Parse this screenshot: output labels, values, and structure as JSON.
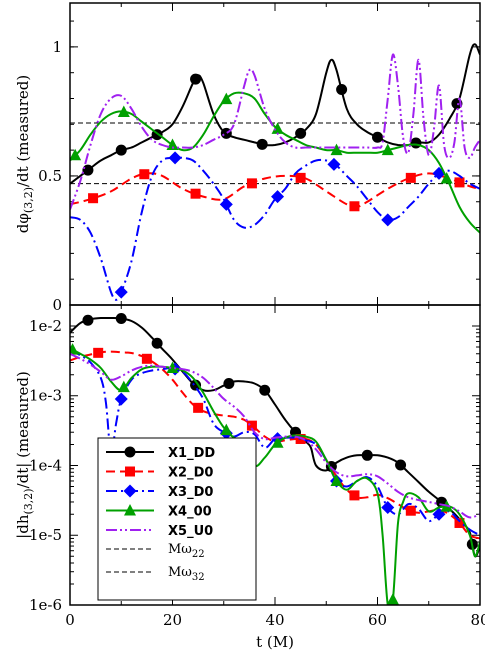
{
  "chart_data": [
    {
      "type": "line",
      "ylabel": "dφ(3,2)/dt (measured)",
      "xlim": [
        0,
        80
      ],
      "ylim": [
        0,
        1.17
      ],
      "yticks": [
        0,
        0.5,
        1
      ],
      "ytick_labels": [
        "0",
        "0.5",
        "1"
      ],
      "reference_lines": [
        {
          "name": "Mω22",
          "y": 0.47
        },
        {
          "name": "Mω32",
          "y": 0.705
        }
      ],
      "series": [
        {
          "name": "X1_DD",
          "color": "#000000",
          "dash": "solid",
          "marker": "circle",
          "x": [
            0,
            2,
            4,
            6,
            8,
            10,
            12,
            14,
            16,
            18,
            20,
            22,
            24,
            25,
            26,
            28,
            30,
            32,
            34,
            36,
            38,
            40,
            42,
            44,
            46,
            48,
            50,
            51,
            52,
            54,
            56,
            58,
            60,
            62,
            64,
            66,
            68,
            70,
            72,
            74,
            76,
            78,
            79,
            80
          ],
          "y": [
            0.47,
            0.5,
            0.53,
            0.56,
            0.58,
            0.6,
            0.61,
            0.63,
            0.65,
            0.67,
            0.7,
            0.77,
            0.86,
            0.89,
            0.86,
            0.74,
            0.67,
            0.65,
            0.64,
            0.63,
            0.62,
            0.62,
            0.63,
            0.65,
            0.68,
            0.74,
            0.9,
            0.95,
            0.91,
            0.76,
            0.7,
            0.67,
            0.65,
            0.63,
            0.62,
            0.62,
            0.63,
            0.63,
            0.66,
            0.72,
            0.8,
            0.97,
            1.01,
            0.97
          ],
          "marker_x": [
            3.5,
            10,
            17,
            24.5,
            30.5,
            37.5,
            45,
            53,
            60,
            67.5,
            75.5
          ]
        },
        {
          "name": "X2_D0",
          "color": "#ff0000",
          "dash": "dashed",
          "marker": "square",
          "x": [
            0,
            4,
            8,
            12,
            15,
            18,
            22,
            26,
            30,
            34,
            38,
            42,
            46,
            50,
            54,
            56,
            58,
            62,
            66,
            70,
            74,
            78,
            80
          ],
          "y": [
            0.39,
            0.41,
            0.44,
            0.49,
            0.51,
            0.5,
            0.45,
            0.42,
            0.41,
            0.46,
            0.49,
            0.5,
            0.49,
            0.44,
            0.39,
            0.38,
            0.4,
            0.45,
            0.49,
            0.51,
            0.49,
            0.46,
            0.45
          ],
          "marker_x": [
            4.5,
            14.5,
            24.5,
            35.5,
            45,
            55.5,
            66.5,
            76
          ]
        },
        {
          "name": "X3_D0",
          "color": "#0000ff",
          "dash": "dashdot",
          "marker": "diamond",
          "x": [
            0,
            2,
            4,
            6,
            8,
            9,
            10,
            12,
            14,
            16,
            18,
            20,
            22,
            24,
            26,
            28,
            30,
            32,
            34,
            36,
            38,
            40,
            42,
            44,
            46,
            48,
            50,
            52,
            54,
            56,
            58,
            60,
            62,
            64,
            66,
            68,
            70,
            72,
            74,
            76,
            78,
            80
          ],
          "y": [
            0.34,
            0.33,
            0.28,
            0.18,
            0.05,
            0.02,
            0.05,
            0.17,
            0.36,
            0.5,
            0.56,
            0.57,
            0.57,
            0.56,
            0.52,
            0.47,
            0.41,
            0.33,
            0.3,
            0.31,
            0.35,
            0.41,
            0.45,
            0.51,
            0.54,
            0.56,
            0.56,
            0.54,
            0.5,
            0.46,
            0.41,
            0.36,
            0.33,
            0.34,
            0.38,
            0.42,
            0.47,
            0.51,
            0.52,
            0.5,
            0.47,
            0.45
          ],
          "marker_x": [
            10,
            20.5,
            30.5,
            40.5,
            51.5,
            62,
            72
          ]
        },
        {
          "name": "X4_00",
          "color": "#00a000",
          "dash": "solid",
          "marker": "triangle",
          "x": [
            0,
            2,
            4,
            6,
            8,
            10,
            12,
            14,
            16,
            18,
            20,
            22,
            24,
            26,
            28,
            30,
            32,
            34,
            36,
            38,
            40,
            42,
            44,
            46,
            48,
            50,
            52,
            54,
            56,
            58,
            60,
            62,
            64,
            66,
            68,
            70,
            72,
            74,
            76,
            78,
            80
          ],
          "y": [
            0.56,
            0.6,
            0.66,
            0.71,
            0.74,
            0.75,
            0.74,
            0.71,
            0.68,
            0.65,
            0.62,
            0.6,
            0.61,
            0.66,
            0.73,
            0.79,
            0.82,
            0.82,
            0.8,
            0.74,
            0.69,
            0.66,
            0.64,
            0.62,
            0.61,
            0.6,
            0.6,
            0.59,
            0.59,
            0.59,
            0.59,
            0.6,
            0.61,
            0.62,
            0.62,
            0.6,
            0.55,
            0.47,
            0.38,
            0.32,
            0.28
          ],
          "marker_x": [
            1,
            10.5,
            20,
            30.5,
            40.5,
            52,
            62,
            73.5
          ]
        },
        {
          "name": "X5_U0",
          "color": "#a020f0",
          "dash": "dashdotdot",
          "marker": "none",
          "x": [
            0,
            2,
            4,
            6,
            8,
            10,
            12,
            14,
            16,
            18,
            20,
            22,
            24,
            26,
            28,
            30,
            32,
            34,
            35,
            36,
            38,
            40,
            42,
            44,
            46,
            48,
            50,
            52,
            54,
            56,
            58,
            60,
            61,
            62,
            63,
            64,
            65,
            66,
            67,
            68,
            69,
            70,
            71,
            72,
            73,
            74,
            75,
            76,
            77,
            78,
            79,
            80
          ],
          "y": [
            0.37,
            0.48,
            0.62,
            0.74,
            0.8,
            0.81,
            0.76,
            0.69,
            0.64,
            0.62,
            0.61,
            0.61,
            0.61,
            0.62,
            0.64,
            0.66,
            0.7,
            0.85,
            0.91,
            0.89,
            0.76,
            0.68,
            0.63,
            0.61,
            0.61,
            0.61,
            0.61,
            0.61,
            0.61,
            0.61,
            0.61,
            0.61,
            0.63,
            0.8,
            0.97,
            0.85,
            0.65,
            0.59,
            0.74,
            0.95,
            0.72,
            0.58,
            0.68,
            0.85,
            0.62,
            0.57,
            0.63,
            0.8,
            0.61,
            0.57,
            0.61,
            0.64
          ]
        }
      ]
    },
    {
      "type": "line",
      "xlabel": "t (M)",
      "ylabel": "|dh(3,2)/dt| (measured)",
      "yscale": "log",
      "xlim": [
        0,
        80
      ],
      "ylim": [
        1e-06,
        0.02
      ],
      "xticks": [
        0,
        20,
        40,
        60,
        80
      ],
      "yticks": [
        1e-06,
        1e-05,
        0.0001,
        0.001,
        0.01
      ],
      "ytick_labels": [
        "1e-6",
        "1e-5",
        "1e-4",
        "1e-3",
        "1e-2"
      ],
      "legend_position": "bottom-left",
      "legend": {
        "entries": [
          "X1_DD",
          "X2_D0",
          "X3_D0",
          "X4_00",
          "X5_U0"
        ],
        "freq_labels": [
          {
            "base": "Mω",
            "sub": "22"
          },
          {
            "base": "Mω",
            "sub": "32"
          }
        ]
      },
      "series": [
        {
          "name": "X1_DD",
          "x": [
            0,
            2,
            4,
            6,
            8,
            10,
            12,
            14,
            16,
            18,
            20,
            22,
            24,
            26,
            28,
            30,
            32,
            34,
            36,
            38,
            40,
            42,
            44,
            46,
            47,
            48,
            50,
            52,
            54,
            56,
            58,
            60,
            62,
            64,
            66,
            68,
            70,
            72,
            74,
            76,
            78,
            79,
            80
          ],
          "y": [
            0.008,
            0.011,
            0.0125,
            0.013,
            0.013,
            0.0128,
            0.0118,
            0.0095,
            0.0068,
            0.0047,
            0.0033,
            0.0022,
            0.0015,
            0.0012,
            0.0012,
            0.0014,
            0.0016,
            0.0016,
            0.0015,
            0.0012,
            0.00075,
            0.00045,
            0.0003,
            0.00022,
            0.00018,
            0.0001,
            8.5e-05,
            0.00011,
            0.00013,
            0.00014,
            0.00014,
            0.00014,
            0.00013,
            0.00011,
            8e-05,
            5.8e-05,
            4.2e-05,
            3.2e-05,
            2.4e-05,
            1.7e-05,
            1.1e-05,
            5e-06,
            7e-06
          ],
          "marker_x": [
            3.5,
            10,
            17,
            24.5,
            31,
            38,
            44,
            51,
            58,
            64.5,
            72.5,
            78.5
          ]
        },
        {
          "name": "X2_D0",
          "x": [
            0,
            2,
            4,
            6,
            8,
            10,
            12,
            14,
            16,
            18,
            20,
            22,
            24,
            26,
            28,
            30,
            32,
            34,
            36,
            38,
            40,
            42,
            44,
            46,
            48,
            50,
            52,
            54,
            56,
            58,
            60,
            62,
            64,
            66,
            68,
            70,
            72,
            74,
            76,
            78,
            80
          ],
          "y": [
            0.0032,
            0.0036,
            0.0039,
            0.0042,
            0.0043,
            0.0042,
            0.0041,
            0.0037,
            0.0031,
            0.0024,
            0.0017,
            0.0011,
            0.00075,
            0.0006,
            0.00055,
            0.00052,
            0.0005,
            0.00045,
            0.00035,
            0.00026,
            0.00022,
            0.00023,
            0.00024,
            0.00024,
            0.0002,
            0.00012,
            7e-05,
            4.5e-05,
            3.5e-05,
            3.5e-05,
            3.8e-05,
            3.4e-05,
            2.8e-05,
            2.3e-05,
            2.1e-05,
            2.2e-05,
            2.3e-05,
            2e-05,
            1.5e-05,
            1e-05,
            9e-06
          ],
          "marker_x": [
            5.5,
            15,
            25,
            35.5,
            45,
            55.5,
            66.5,
            76
          ]
        },
        {
          "name": "X3_D0",
          "x": [
            0,
            2,
            4,
            6,
            7,
            8,
            9,
            10,
            12,
            14,
            16,
            18,
            20,
            22,
            24,
            26,
            28,
            30,
            32,
            34,
            36,
            38,
            40,
            42,
            44,
            46,
            48,
            50,
            52,
            54,
            56,
            58,
            60,
            62,
            64,
            66,
            68,
            70,
            72,
            74,
            76,
            78,
            80
          ],
          "y": [
            0.0045,
            0.0038,
            0.003,
            0.0018,
            0.0008,
            0.00015,
            0.0004,
            0.0009,
            0.0017,
            0.0021,
            0.0023,
            0.0024,
            0.0025,
            0.0022,
            0.0015,
            0.0009,
            0.0004,
            0.0003,
            0.00026,
            0.0003,
            0.00028,
            0.00018,
            0.00024,
            0.00025,
            0.00025,
            0.00023,
            0.0002,
            0.00012,
            6e-05,
            5e-05,
            6e-05,
            6.8e-05,
            5e-05,
            2.5e-05,
            2e-05,
            2.8e-05,
            2.4e-05,
            1.6e-05,
            2e-05,
            2.2e-05,
            1.6e-05,
            1.2e-05,
            1e-05
          ],
          "marker_x": [
            10,
            20.5,
            30.5,
            40.5,
            52,
            62,
            72
          ]
        },
        {
          "name": "X4_00",
          "x": [
            0,
            2,
            4,
            6,
            8,
            10,
            12,
            14,
            16,
            18,
            20,
            22,
            24,
            26,
            28,
            30,
            32,
            34,
            36,
            38,
            40,
            42,
            44,
            46,
            48,
            50,
            52,
            54,
            56,
            58,
            60,
            61,
            62,
            63,
            64,
            65,
            66,
            68,
            70,
            72,
            74,
            76,
            78,
            79,
            80
          ],
          "y": [
            0.0048,
            0.004,
            0.0033,
            0.0025,
            0.0016,
            0.0012,
            0.0018,
            0.0024,
            0.0026,
            0.0026,
            0.0025,
            0.0023,
            0.0018,
            0.0011,
            0.0006,
            0.00035,
            0.00025,
            0.00022,
            0.0001,
            0.00013,
            0.0002,
            0.00025,
            0.00027,
            0.00026,
            0.00022,
            0.00012,
            6e-05,
            4.5e-05,
            6e-05,
            6.5e-05,
            4e-05,
            1e-05,
            1e-06,
            1.2e-06,
            1.5e-05,
            3e-05,
            4e-05,
            3.5e-05,
            2.2e-05,
            2.5e-05,
            2.6e-05,
            2e-05,
            1e-05,
            5e-06,
            8e-06
          ],
          "marker_x": [
            0.5,
            10.5,
            20,
            30.5,
            40.5,
            52,
            63,
            73.5
          ]
        },
        {
          "name": "X5_U0",
          "x": [
            0,
            2,
            4,
            6,
            8,
            10,
            12,
            14,
            16,
            18,
            20,
            22,
            24,
            26,
            28,
            30,
            32,
            34,
            36,
            38,
            40,
            42,
            44,
            46,
            48,
            50,
            52,
            54,
            56,
            58,
            60,
            62,
            64,
            66,
            68,
            70,
            72,
            74,
            76,
            78,
            80
          ],
          "y": [
            0.004,
            0.0034,
            0.0028,
            0.0022,
            0.0017,
            0.0019,
            0.0023,
            0.0026,
            0.0027,
            0.0026,
            0.0025,
            0.0024,
            0.0022,
            0.0018,
            0.0013,
            0.0009,
            0.0007,
            0.0005,
            0.0003,
            0.00024,
            0.00025,
            0.00026,
            0.00026,
            0.00023,
            0.00017,
            0.00011,
            8e-05,
            7e-05,
            7.2e-05,
            7.5e-05,
            7e-05,
            5.5e-05,
            4.2e-05,
            3.5e-05,
            3.2e-05,
            3e-05,
            2.8e-05,
            2.6e-05,
            2.2e-05,
            1.8e-05,
            2e-05
          ]
        }
      ]
    }
  ]
}
